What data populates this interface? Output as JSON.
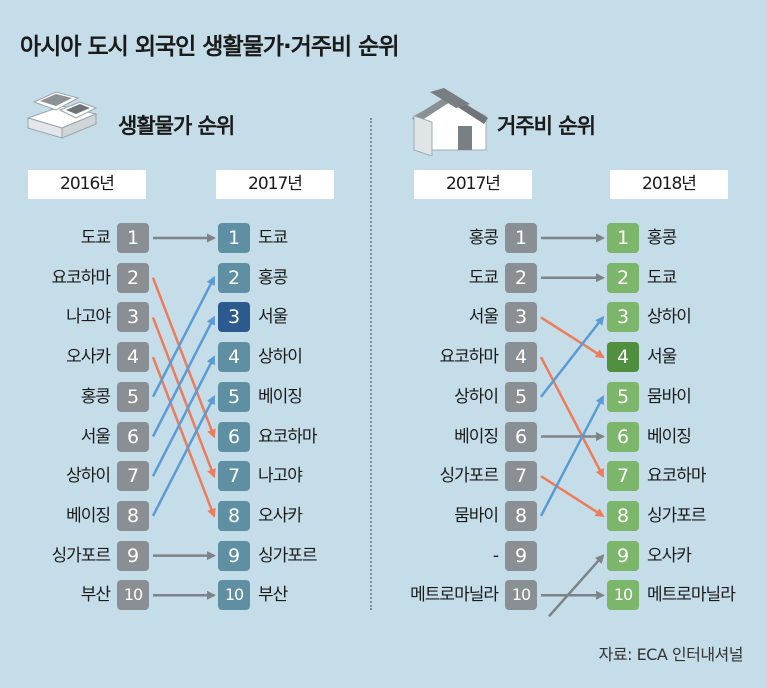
{
  "title": "아시아 도시 외국인 생활물가·거주비 순위",
  "left": {
    "heading": "생활물가 순위",
    "icon": "money-stack-icon",
    "year_from": "2016년",
    "year_to": "2017년",
    "from": [
      {
        "city": "도쿄",
        "rank": "1"
      },
      {
        "city": "요코하마",
        "rank": "2"
      },
      {
        "city": "나고야",
        "rank": "3"
      },
      {
        "city": "오사카",
        "rank": "4"
      },
      {
        "city": "홍콩",
        "rank": "5"
      },
      {
        "city": "서울",
        "rank": "6"
      },
      {
        "city": "상하이",
        "rank": "7"
      },
      {
        "city": "베이징",
        "rank": "8"
      },
      {
        "city": "싱가포르",
        "rank": "9"
      },
      {
        "city": "부산",
        "rank": "10"
      }
    ],
    "to": [
      {
        "city": "도쿄",
        "rank": "1"
      },
      {
        "city": "홍콩",
        "rank": "2"
      },
      {
        "city": "서울",
        "rank": "3"
      },
      {
        "city": "상하이",
        "rank": "4"
      },
      {
        "city": "베이징",
        "rank": "5"
      },
      {
        "city": "요코하마",
        "rank": "6"
      },
      {
        "city": "나고야",
        "rank": "7"
      },
      {
        "city": "오사카",
        "rank": "8"
      },
      {
        "city": "싱가포르",
        "rank": "9"
      },
      {
        "city": "부산",
        "rank": "10"
      }
    ]
  },
  "right": {
    "heading": "거주비 순위",
    "icon": "house-icon",
    "year_from": "2017년",
    "year_to": "2018년",
    "from": [
      {
        "city": "홍콩",
        "rank": "1"
      },
      {
        "city": "도쿄",
        "rank": "2"
      },
      {
        "city": "서울",
        "rank": "3"
      },
      {
        "city": "요코하마",
        "rank": "4"
      },
      {
        "city": "상하이",
        "rank": "5"
      },
      {
        "city": "베이징",
        "rank": "6"
      },
      {
        "city": "싱가포르",
        "rank": "7"
      },
      {
        "city": "뭄바이",
        "rank": "8"
      },
      {
        "city": "-",
        "rank": "9"
      },
      {
        "city": "메트로마닐라",
        "rank": "10"
      }
    ],
    "to": [
      {
        "city": "홍콩",
        "rank": "1"
      },
      {
        "city": "도쿄",
        "rank": "2"
      },
      {
        "city": "상하이",
        "rank": "3"
      },
      {
        "city": "서울",
        "rank": "4"
      },
      {
        "city": "뭄바이",
        "rank": "5"
      },
      {
        "city": "베이징",
        "rank": "6"
      },
      {
        "city": "요코하마",
        "rank": "7"
      },
      {
        "city": "싱가포르",
        "rank": "8"
      },
      {
        "city": "오사카",
        "rank": "9"
      },
      {
        "city": "메트로마닐라",
        "rank": "10"
      }
    ]
  },
  "source": "자료: ECA 인터내셔널",
  "colors": {
    "background": "#c5dde8",
    "gray_badge": "#8a8f93",
    "teal_badge": "#5f8fa3",
    "seoul_badge_left": "#2c5a8e",
    "green_badge": "#7cb66a",
    "seoul_badge_right": "#4f8f3d",
    "rise_arrow": "#5b9bd5",
    "fall_arrow": "#ee7b5a",
    "same_arrow": "#7d8387"
  }
}
